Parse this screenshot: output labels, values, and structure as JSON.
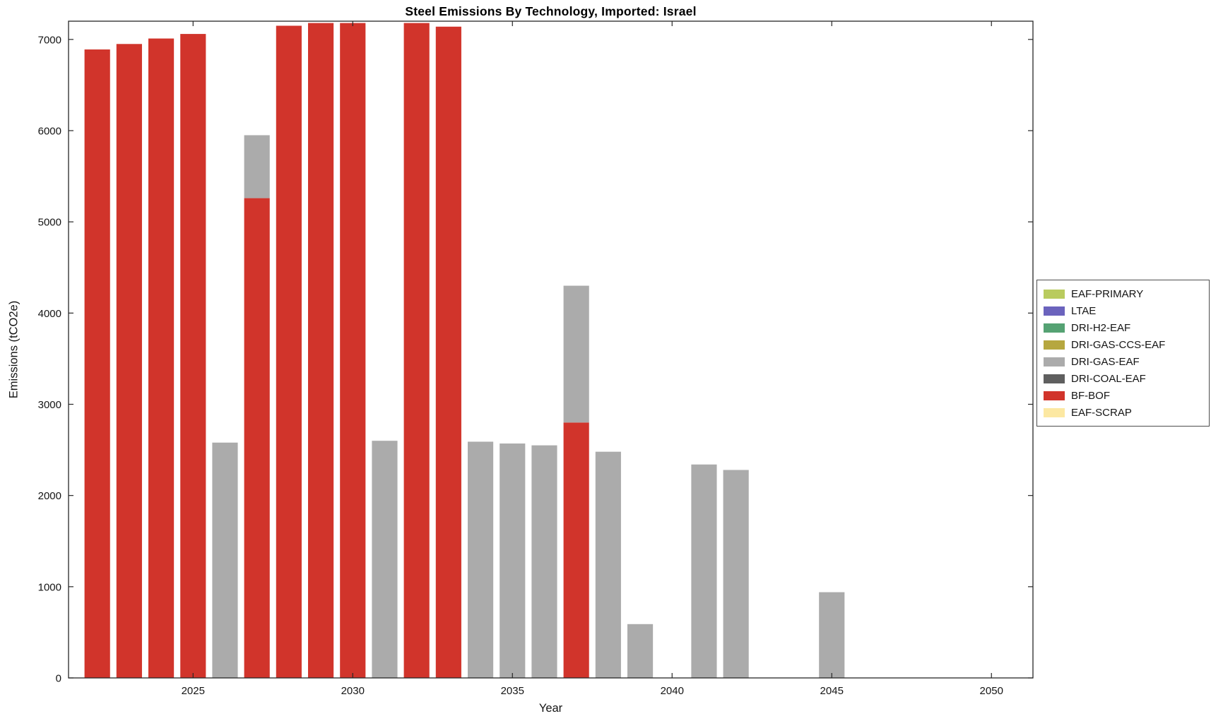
{
  "chart_data": {
    "type": "bar",
    "stacked": true,
    "title": "Steel Emissions By Technology, Imported: Israel",
    "xlabel": "Year",
    "ylabel": "Emissions (tCO2e)",
    "xlim": [
      2021.1,
      2051.3
    ],
    "ylim": [
      0,
      7200
    ],
    "xticks": [
      2025,
      2030,
      2035,
      2040,
      2045,
      2050
    ],
    "yticks": [
      0,
      1000,
      2000,
      3000,
      4000,
      5000,
      6000,
      7000
    ],
    "bar_width": 0.8,
    "grid": false,
    "background": "#ffffff",
    "axis_color": "#262626",
    "legend_position": "right-outside",
    "categories": [
      2022,
      2023,
      2024,
      2025,
      2026,
      2027,
      2028,
      2029,
      2030,
      2031,
      2032,
      2033,
      2034,
      2035,
      2036,
      2037,
      2038,
      2039,
      2040,
      2041,
      2042,
      2043,
      2044,
      2045,
      2046,
      2047,
      2048,
      2049,
      2050
    ],
    "series": [
      {
        "name": "BF-BOF",
        "color": "#d1342b",
        "values": [
          6890,
          6950,
          7010,
          7060,
          0,
          5260,
          7150,
          7180,
          7180,
          0,
          7180,
          7140,
          0,
          0,
          0,
          2800,
          0,
          0,
          0,
          0,
          0,
          0,
          0,
          0,
          0,
          0,
          0,
          0,
          0
        ]
      },
      {
        "name": "DRI-GAS-EAF",
        "color": "#ababab",
        "values": [
          0,
          0,
          0,
          0,
          2580,
          690,
          0,
          0,
          0,
          2600,
          0,
          0,
          2590,
          2570,
          2550,
          1500,
          2480,
          590,
          0,
          2340,
          2280,
          0,
          0,
          940,
          0,
          0,
          0,
          0,
          0
        ]
      }
    ],
    "legend": [
      {
        "label": "EAF-PRIMARY",
        "color": "#b9cb5e"
      },
      {
        "label": "LTAE",
        "color": "#6b63bd"
      },
      {
        "label": "DRI-H2-EAF",
        "color": "#55a273"
      },
      {
        "label": "DRI-GAS-CCS-EAF",
        "color": "#b6a73f"
      },
      {
        "label": "DRI-GAS-EAF",
        "color": "#ababab"
      },
      {
        "label": "DRI-COAL-EAF",
        "color": "#5f5f5f"
      },
      {
        "label": "BF-BOF",
        "color": "#d1342b"
      },
      {
        "label": "EAF-SCRAP",
        "color": "#fce8a2"
      }
    ]
  }
}
